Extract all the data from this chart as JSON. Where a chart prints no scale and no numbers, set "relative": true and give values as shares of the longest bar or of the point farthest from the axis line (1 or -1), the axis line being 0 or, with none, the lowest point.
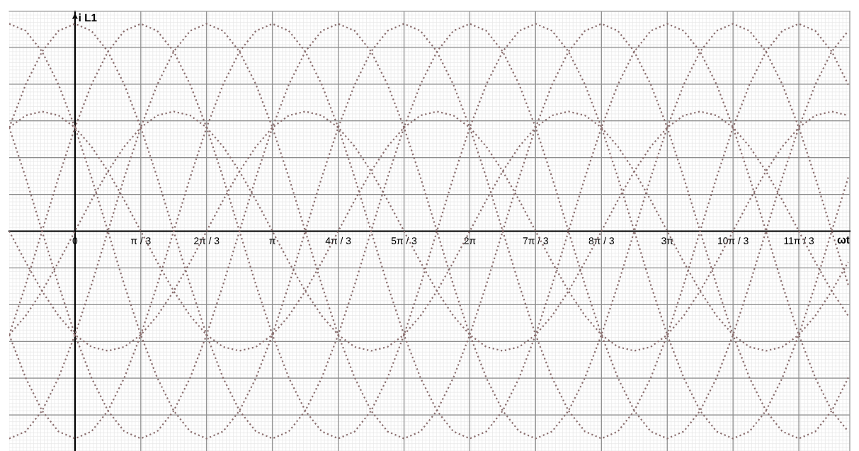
{
  "chart_data": {
    "type": "line",
    "relative": true,
    "xlabel": "ωt",
    "ylabel": "i L1",
    "x": [
      -1.047,
      -0.785,
      -0.524,
      -0.262,
      0,
      0.262,
      0.524,
      0.785,
      1.047,
      1.309,
      1.571,
      1.833,
      2.094,
      2.356,
      2.618,
      2.88,
      3.142,
      3.403,
      3.665,
      3.927,
      4.189,
      4.451,
      4.712,
      4.974,
      5.236,
      5.498,
      5.76,
      6.021,
      6.283,
      6.545,
      6.807,
      7.069,
      7.33,
      7.592,
      7.854,
      8.116,
      8.378,
      8.639,
      8.901,
      9.163,
      9.425,
      9.687,
      9.948,
      10.21,
      10.472,
      10.734,
      10.996,
      11.257,
      11.519,
      11.781,
      12.043,
      12.305
    ],
    "xlim": [
      -1.047,
      12.33
    ],
    "xticks": [
      {
        "value": 0,
        "label": "0"
      },
      {
        "value": 1.047,
        "label": "π / 3"
      },
      {
        "value": 2.094,
        "label": "2π / 3"
      },
      {
        "value": 3.142,
        "label": "π"
      },
      {
        "value": 4.189,
        "label": "4π / 3"
      },
      {
        "value": 5.236,
        "label": "5π / 3"
      },
      {
        "value": 6.283,
        "label": "2π"
      },
      {
        "value": 7.33,
        "label": "7π / 3"
      },
      {
        "value": 8.378,
        "label": "8π / 3"
      },
      {
        "value": 9.425,
        "label": "3π"
      },
      {
        "value": 10.472,
        "label": "10π / 3"
      },
      {
        "value": 11.519,
        "label": "11π / 3"
      }
    ],
    "tick_labels": "x",
    "grid": true,
    "legend": false,
    "marker": "none",
    "line_style": "dotted",
    "series": [
      {
        "color": "#8a6e6e",
        "values": [
          0.5,
          0.707,
          0.866,
          0.966,
          1,
          0.966,
          0.866,
          0.707,
          0.5,
          0.259,
          0,
          -0.259,
          -0.5,
          -0.707,
          -0.866,
          -0.966,
          -1,
          -0.966,
          -0.866,
          -0.707,
          -0.5,
          -0.259,
          0,
          0.259,
          0.5,
          0.707,
          0.866,
          0.966,
          1,
          0.966,
          0.866,
          0.707,
          0.5,
          0.259,
          0,
          -0.259,
          -0.5,
          -0.707,
          -0.866,
          -0.966,
          -1,
          -0.966,
          -0.866,
          -0.707,
          -0.5,
          -0.259,
          0,
          0.259,
          0.5,
          0.707,
          0.866,
          0.966
        ]
      },
      {
        "color": "#8a6e6e",
        "values": [
          -0.5,
          -0.259,
          0,
          0.259,
          0.5,
          0.707,
          0.866,
          0.966,
          1,
          0.966,
          0.866,
          0.707,
          0.5,
          0.259,
          0,
          -0.259,
          -0.5,
          -0.707,
          -0.866,
          -0.966,
          -1,
          -0.966,
          -0.866,
          -0.707,
          -0.5,
          -0.259,
          0,
          0.259,
          0.5,
          0.707,
          0.866,
          0.966,
          1,
          0.966,
          0.866,
          0.707,
          0.5,
          0.259,
          0,
          -0.259,
          -0.5,
          -0.707,
          -0.866,
          -0.966,
          -1,
          -0.966,
          -0.866,
          -0.707,
          -0.5,
          -0.259,
          0,
          0.259
        ]
      },
      {
        "color": "#8a6e6e",
        "values": [
          -1,
          -0.966,
          -0.866,
          -0.707,
          -0.5,
          -0.259,
          0,
          0.259,
          0.5,
          0.707,
          0.866,
          0.966,
          1,
          0.966,
          0.866,
          0.707,
          0.5,
          0.259,
          0,
          -0.259,
          -0.5,
          -0.707,
          -0.866,
          -0.966,
          -1,
          -0.966,
          -0.866,
          -0.707,
          -0.5,
          -0.259,
          0,
          0.259,
          0.5,
          0.707,
          0.866,
          0.966,
          1,
          0.966,
          0.866,
          0.707,
          0.5,
          0.259,
          0,
          -0.259,
          -0.5,
          -0.707,
          -0.866,
          -0.966,
          -1,
          -0.966,
          -0.866,
          -0.707
        ]
      },
      {
        "color": "#8a6e6e",
        "values": [
          -0.5,
          -0.707,
          -0.866,
          -0.966,
          -1,
          -0.966,
          -0.866,
          -0.707,
          -0.5,
          -0.259,
          0,
          0.259,
          0.5,
          0.707,
          0.866,
          0.966,
          1,
          0.966,
          0.866,
          0.707,
          0.5,
          0.259,
          0,
          -0.259,
          -0.5,
          -0.707,
          -0.866,
          -0.966,
          -1,
          -0.966,
          -0.866,
          -0.707,
          -0.5,
          -0.259,
          0,
          0.259,
          0.5,
          0.707,
          0.866,
          0.966,
          1,
          0.966,
          0.866,
          0.707,
          0.5,
          0.259,
          0,
          -0.259,
          -0.5,
          -0.707,
          -0.866,
          -0.966
        ]
      },
      {
        "color": "#8a6e6e",
        "values": [
          0.5,
          0.259,
          0,
          -0.259,
          -0.5,
          -0.707,
          -0.866,
          -0.966,
          -1,
          -0.966,
          -0.866,
          -0.707,
          -0.5,
          -0.259,
          0,
          0.259,
          0.5,
          0.707,
          0.866,
          0.966,
          1,
          0.966,
          0.866,
          0.707,
          0.5,
          0.259,
          0,
          -0.259,
          -0.5,
          -0.707,
          -0.866,
          -0.966,
          -1,
          -0.966,
          -0.866,
          -0.707,
          -0.5,
          -0.259,
          0,
          0.259,
          0.5,
          0.707,
          0.866,
          0.966,
          1,
          0.966,
          0.866,
          0.707,
          0.5,
          0.259,
          0,
          -0.259
        ]
      },
      {
        "color": "#8a6e6e",
        "values": [
          1,
          0.966,
          0.866,
          0.707,
          0.5,
          0.259,
          0,
          -0.259,
          -0.5,
          -0.707,
          -0.866,
          -0.966,
          -1,
          -0.966,
          -0.866,
          -0.707,
          -0.5,
          -0.259,
          0,
          0.259,
          0.5,
          0.707,
          0.866,
          0.966,
          1,
          0.966,
          0.866,
          0.707,
          0.5,
          0.259,
          0,
          -0.259,
          -0.5,
          -0.707,
          -0.866,
          -0.966,
          -1,
          -0.966,
          -0.866,
          -0.707,
          -0.5,
          -0.259,
          0,
          0.259,
          0.5,
          0.707,
          0.866,
          0.966,
          1,
          0.966,
          0.866,
          0.707
        ]
      },
      {
        "color": "#8a6e6e",
        "values": [
          0.5,
          0.558,
          0.577,
          0.558,
          0.5,
          0.408,
          0.289,
          0.149,
          0,
          -0.149,
          -0.289,
          -0.408,
          -0.5,
          -0.558,
          -0.577,
          -0.558,
          -0.5,
          -0.408,
          -0.289,
          -0.149,
          0,
          0.149,
          0.289,
          0.408,
          0.5,
          0.558,
          0.577,
          0.558,
          0.5,
          0.408,
          0.289,
          0.149,
          0,
          -0.149,
          -0.289,
          -0.408,
          -0.5,
          -0.558,
          -0.577,
          -0.558,
          -0.5,
          -0.408,
          -0.289,
          -0.149,
          0,
          0.149,
          0.289,
          0.408,
          0.5,
          0.558,
          0.577,
          0.558
        ]
      },
      {
        "color": "#8a6e6e",
        "values": [
          -0.5,
          -0.408,
          -0.289,
          -0.149,
          0,
          0.149,
          0.289,
          0.408,
          0.5,
          0.558,
          0.577,
          0.558,
          0.5,
          0.408,
          0.289,
          0.149,
          0,
          -0.149,
          -0.289,
          -0.408,
          -0.5,
          -0.558,
          -0.577,
          -0.558,
          -0.5,
          -0.408,
          -0.289,
          -0.149,
          0,
          0.149,
          0.289,
          0.408,
          0.5,
          0.558,
          0.577,
          0.558,
          0.5,
          0.408,
          0.289,
          0.149,
          0,
          -0.149,
          -0.289,
          -0.408,
          -0.5,
          -0.558,
          -0.577,
          -0.558,
          -0.5,
          -0.408,
          -0.289,
          -0.149
        ]
      },
      {
        "color": "#8a6e6e",
        "values": [
          0,
          -0.149,
          -0.289,
          -0.408,
          -0.5,
          -0.558,
          -0.577,
          -0.558,
          -0.5,
          -0.408,
          -0.289,
          -0.149,
          0,
          0.149,
          0.289,
          0.408,
          0.5,
          0.558,
          0.577,
          0.558,
          0.5,
          0.408,
          0.289,
          0.149,
          0,
          -0.149,
          -0.289,
          -0.408,
          -0.5,
          -0.558,
          -0.577,
          -0.558,
          -0.5,
          -0.408,
          -0.289,
          -0.149,
          0,
          0.149,
          0.289,
          0.408,
          0.5,
          0.558,
          0.577,
          0.558,
          0.5,
          0.408,
          0.289,
          0.149,
          0,
          -0.149,
          -0.289,
          -0.408
        ]
      }
    ]
  }
}
